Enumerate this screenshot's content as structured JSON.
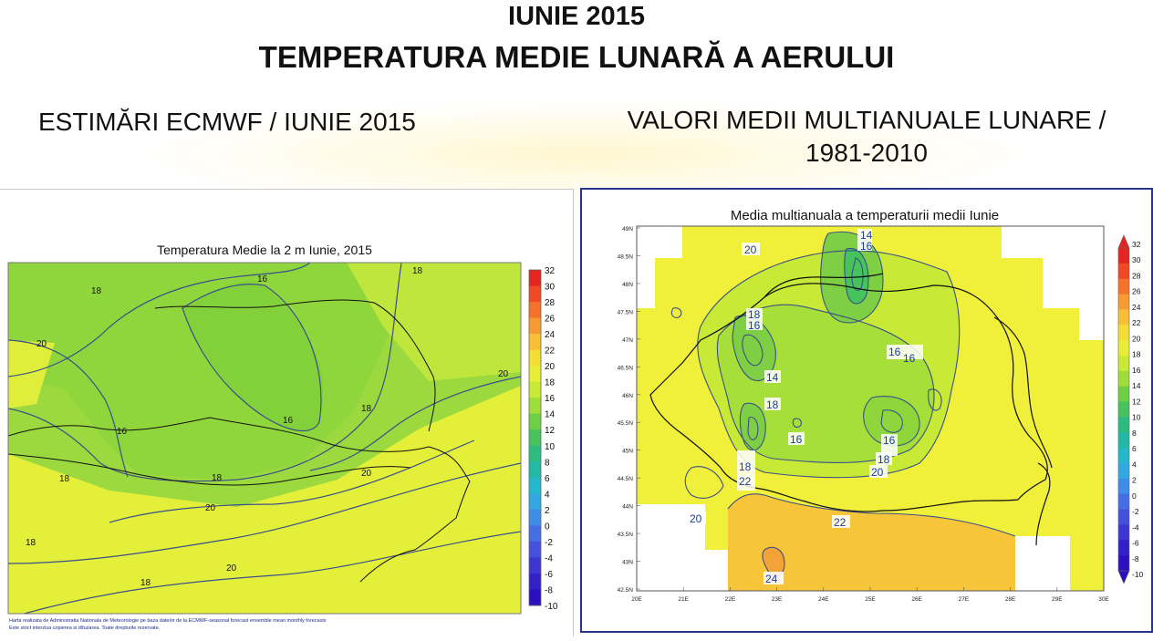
{
  "header": {
    "title_line1": "IUNIE 2015",
    "title_line2": "TEMPERATURA MEDIE LUNARĂ A AERULUI",
    "subtitle_left": "ESTIMĂRI ECMWF / IUNIE 2015",
    "subtitle_right_line1": "VALORI MEDII MULTIANUALE LUNARE /",
    "subtitle_right_line2": "1981-2010"
  },
  "colors": {
    "green_fill": "#8fd63c",
    "yellow_green_fill": "#c9e832",
    "yellow_fill": "#f0f03a",
    "orange_fill": "#f4c232",
    "contour": "#3a4f8a",
    "border_line": "#111111"
  },
  "chart_data": [
    {
      "type": "heatmap",
      "title": "Temperatura Medie la 2 m Iunie, 2015",
      "colorbar_ticks": [
        "32",
        "30",
        "28",
        "26",
        "24",
        "22",
        "20",
        "18",
        "16",
        "14",
        "12",
        "10",
        "8",
        "6",
        "4",
        "2",
        "0",
        "-2",
        "-4",
        "-6",
        "-8",
        "-10"
      ],
      "colorbar_colors": [
        "#e52521",
        "#ef4a23",
        "#f4722a",
        "#f79a32",
        "#f8bf36",
        "#f4dd36",
        "#e8ee36",
        "#c8ea36",
        "#9edd3a",
        "#6fcf44",
        "#46c35c",
        "#2cbc80",
        "#22b9a6",
        "#24b8cb",
        "#33a7e2",
        "#3f8be8",
        "#456ee4",
        "#4550dc",
        "#3c36d2",
        "#3321c8",
        "#2a10bf"
      ],
      "contour_labels": [
        "18",
        "16",
        "18",
        "20",
        "20",
        "18",
        "16",
        "16",
        "18",
        "20",
        "18",
        "20",
        "18",
        "20",
        "20",
        "18",
        "18",
        "20"
      ],
      "footer_line1": "Harta realizata de Administratia Nationala de Meteorologie pe baza datelor de la ECMWF-seasonal forecast ensemble mean monthly forecasts",
      "footer_line2": "Este strict interzisa copierea si difuzarea. Toate drepturile rezervate."
    },
    {
      "type": "heatmap",
      "title": "Media multianuala a temperaturii medii Iunie",
      "colorbar_ticks": [
        "32",
        "30",
        "28",
        "26",
        "24",
        "22",
        "20",
        "18",
        "16",
        "14",
        "12",
        "10",
        "8",
        "6",
        "4",
        "2",
        "0",
        "-2",
        "-4",
        "-6",
        "-8",
        "-10"
      ],
      "colorbar_colors": [
        "#e52521",
        "#ef4a23",
        "#f4722a",
        "#f79a32",
        "#f8bf36",
        "#f4dd36",
        "#e8ee36",
        "#c8ea36",
        "#9edd3a",
        "#6fcf44",
        "#46c35c",
        "#2cbc80",
        "#22b9a6",
        "#24b8cb",
        "#33a7e2",
        "#3f8be8",
        "#456ee4",
        "#4550dc",
        "#3c36d2",
        "#3321c8",
        "#2a10bf"
      ],
      "lat_ticks": [
        "49N",
        "48.5N",
        "48N",
        "47.5N",
        "47N",
        "46.5N",
        "46N",
        "45.5N",
        "45N",
        "44.5N",
        "44N",
        "43.5N",
        "43N",
        "42.5N"
      ],
      "lon_ticks": [
        "20E",
        "21E",
        "22E",
        "23E",
        "24E",
        "25E",
        "26E",
        "27E",
        "28E",
        "29E",
        "30E"
      ],
      "contour_labels": [
        "14",
        "16",
        "20",
        "18",
        "16",
        "16",
        "16",
        "14",
        "18",
        "16",
        "16",
        "18",
        "20",
        "18",
        "22",
        "20",
        "22",
        "24"
      ]
    }
  ]
}
